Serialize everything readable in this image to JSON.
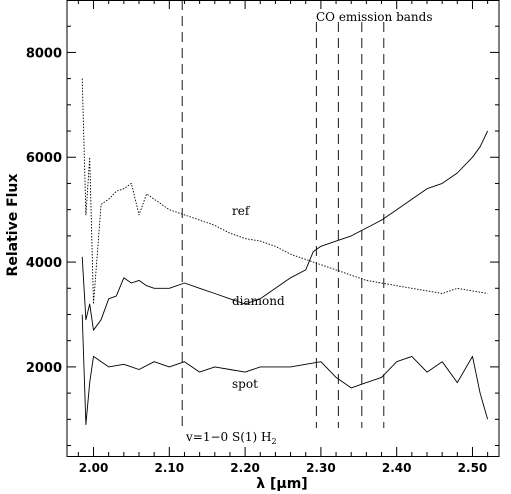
{
  "chart_data": {
    "type": "line",
    "xlabel": "λ [μm]",
    "ylabel": "Relative Flux",
    "xlim": [
      1.965,
      2.535
    ],
    "ylim": [
      300,
      9000
    ],
    "grid": false,
    "x_ticks": [
      2.0,
      2.1,
      2.2,
      2.3,
      2.4,
      2.5
    ],
    "x_tick_labels": [
      "2.00",
      "2.10",
      "2.20",
      "2.30",
      "2.40",
      "2.50"
    ],
    "y_ticks": [
      2000,
      4000,
      6000,
      8000
    ],
    "y_tick_labels": [
      "2000",
      "4000",
      "6000",
      "8000"
    ],
    "series": [
      {
        "name": "ref",
        "style": "dotted",
        "x": [
          1.985,
          1.99,
          1.995,
          2.0,
          2.01,
          2.02,
          2.03,
          2.04,
          2.05,
          2.06,
          2.07,
          2.08,
          2.09,
          2.1,
          2.12,
          2.14,
          2.16,
          2.18,
          2.2,
          2.22,
          2.24,
          2.26,
          2.28,
          2.3,
          2.32,
          2.34,
          2.36,
          2.38,
          2.4,
          2.42,
          2.44,
          2.46,
          2.48,
          2.5,
          2.52
        ],
        "y": [
          7500,
          4900,
          6000,
          3200,
          5100,
          5200,
          5350,
          5400,
          5500,
          4900,
          5300,
          5200,
          5100,
          5000,
          4900,
          4800,
          4700,
          4550,
          4450,
          4400,
          4300,
          4150,
          4050,
          3950,
          3850,
          3750,
          3650,
          3600,
          3550,
          3500,
          3450,
          3400,
          3500,
          3450,
          3400
        ]
      },
      {
        "name": "diamond",
        "style": "solid",
        "x": [
          1.985,
          1.99,
          1.995,
          2.0,
          2.01,
          2.02,
          2.03,
          2.04,
          2.05,
          2.06,
          2.07,
          2.08,
          2.1,
          2.12,
          2.14,
          2.16,
          2.18,
          2.2,
          2.22,
          2.24,
          2.26,
          2.28,
          2.29,
          2.3,
          2.32,
          2.34,
          2.36,
          2.38,
          2.4,
          2.42,
          2.44,
          2.46,
          2.48,
          2.5,
          2.51,
          2.52
        ],
        "y": [
          4100,
          2900,
          3200,
          2700,
          2900,
          3300,
          3350,
          3700,
          3600,
          3650,
          3550,
          3500,
          3500,
          3600,
          3500,
          3400,
          3300,
          3200,
          3300,
          3500,
          3700,
          3850,
          4200,
          4300,
          4400,
          4500,
          4650,
          4800,
          5000,
          5200,
          5400,
          5500,
          5700,
          6000,
          6200,
          6500
        ]
      },
      {
        "name": "spot",
        "style": "solid",
        "x": [
          1.985,
          1.99,
          1.995,
          2.0,
          2.02,
          2.04,
          2.06,
          2.08,
          2.1,
          2.12,
          2.14,
          2.16,
          2.18,
          2.2,
          2.22,
          2.24,
          2.26,
          2.28,
          2.3,
          2.32,
          2.34,
          2.36,
          2.38,
          2.4,
          2.42,
          2.44,
          2.46,
          2.48,
          2.5,
          2.51,
          2.52
        ],
        "y": [
          3000,
          900,
          1700,
          2200,
          2000,
          2050,
          1950,
          2100,
          2000,
          2100,
          1900,
          2000,
          1950,
          1900,
          2000,
          2000,
          2000,
          2050,
          2100,
          1800,
          1600,
          1700,
          1800,
          2100,
          2200,
          1900,
          2100,
          1700,
          2200,
          1500,
          1000
        ]
      }
    ],
    "vertical_lines": [
      2.117,
      2.294,
      2.323,
      2.354,
      2.383
    ],
    "annotations": {
      "co_label": "CO emission bands",
      "h2_label_main": "v=1−0 S(1) H",
      "h2_label_sub": "2",
      "ref_label": "ref",
      "diamond_label": "diamond",
      "spot_label": "spot"
    }
  }
}
